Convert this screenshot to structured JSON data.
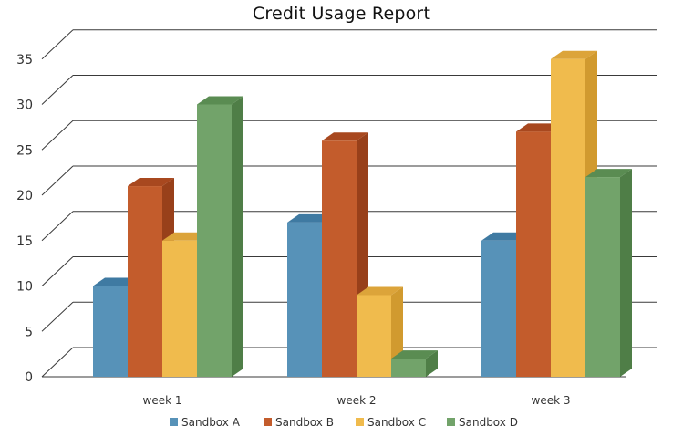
{
  "chart_data": {
    "type": "bar",
    "title": "Credit Usage Report",
    "categories": [
      "week 1",
      "week 2",
      "week 3"
    ],
    "series": [
      {
        "name": "Sandbox A",
        "values": [
          10,
          17,
          15
        ],
        "color": "#5792b8",
        "side": "#2f6a90",
        "top": "#3f7aa2"
      },
      {
        "name": "Sandbox B",
        "values": [
          21,
          26,
          27
        ],
        "color": "#c35c2c",
        "side": "#98401a",
        "top": "#a8481f"
      },
      {
        "name": "Sandbox C",
        "values": [
          15,
          9,
          35
        ],
        "color": "#f0bb4d",
        "side": "#d19a2f",
        "top": "#dca43a"
      },
      {
        "name": "Sandbox D",
        "values": [
          30,
          2,
          22
        ],
        "color": "#72a36a",
        "side": "#4f7e47",
        "top": "#5a8c52"
      }
    ],
    "yticks": [
      0,
      5,
      10,
      15,
      20,
      25,
      30,
      35
    ],
    "ylim": [
      0,
      37
    ],
    "grid": true,
    "legend": "bottom",
    "style": "3d-clustered-column"
  }
}
